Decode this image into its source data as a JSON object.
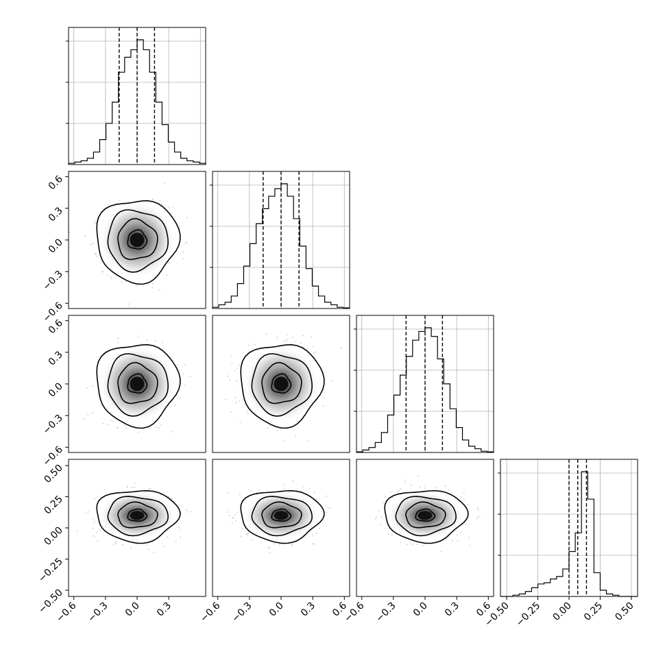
{
  "chart_data": [
    {
      "type": "histogram",
      "panel": "1,1",
      "param_index": 0,
      "bin_edges_range": [
        -0.65,
        0.65
      ],
      "counts_relative": [
        0.01,
        0.02,
        0.03,
        0.05,
        0.1,
        0.2,
        0.33,
        0.5,
        0.74,
        0.86,
        0.92,
        1.0,
        0.92,
        0.74,
        0.5,
        0.32,
        0.18,
        0.1,
        0.05,
        0.03,
        0.02,
        0.01
      ],
      "quantile_lines": [
        -0.17,
        0.0,
        0.165
      ],
      "xlim": [
        -0.65,
        0.65
      ],
      "grid": true
    },
    {
      "type": "histogram",
      "panel": "2,2",
      "param_index": 1,
      "bin_edges_range": [
        -0.65,
        0.65
      ],
      "counts_relative": [
        0.01,
        0.03,
        0.05,
        0.1,
        0.2,
        0.34,
        0.52,
        0.68,
        0.8,
        0.9,
        0.96,
        1.0,
        0.9,
        0.72,
        0.5,
        0.32,
        0.18,
        0.1,
        0.05,
        0.03,
        0.01,
        0.005
      ],
      "quantile_lines": [
        -0.17,
        0.0,
        0.17
      ],
      "xlim": [
        -0.65,
        0.65
      ],
      "grid": true
    },
    {
      "type": "histogram",
      "panel": "3,3",
      "param_index": 2,
      "bin_edges_range": [
        -0.65,
        0.65
      ],
      "counts_relative": [
        0.005,
        0.02,
        0.04,
        0.08,
        0.16,
        0.3,
        0.46,
        0.62,
        0.77,
        0.9,
        0.97,
        1.0,
        0.93,
        0.75,
        0.55,
        0.35,
        0.2,
        0.1,
        0.05,
        0.03,
        0.01,
        0.005
      ],
      "quantile_lines": [
        -0.18,
        0.0,
        0.165
      ],
      "xlim": [
        -0.65,
        0.65
      ],
      "grid": true
    },
    {
      "type": "histogram",
      "panel": "4,4",
      "param_index": 3,
      "bin_edges_range": [
        -0.55,
        0.55
      ],
      "counts_relative": [
        0.0,
        0.0,
        0.01,
        0.02,
        0.04,
        0.07,
        0.1,
        0.11,
        0.14,
        0.16,
        0.22,
        0.36,
        0.51,
        1.0,
        0.78,
        0.19,
        0.05,
        0.02,
        0.01,
        0.0,
        0.0,
        0.0
      ],
      "quantile_lines": [
        0.0,
        0.07,
        0.14
      ],
      "xlim": [
        -0.55,
        0.55
      ],
      "grid": true
    },
    {
      "type": "scatter-contour",
      "panel": "2,1",
      "x_param": 0,
      "y_param": 1,
      "center": [
        0.0,
        0.0
      ],
      "spread": [
        0.15,
        0.15
      ],
      "xlim": [
        -0.65,
        0.65
      ],
      "ylim": [
        -0.65,
        0.65
      ]
    },
    {
      "type": "scatter-contour",
      "panel": "3,1",
      "x_param": 0,
      "y_param": 2,
      "center": [
        0.0,
        0.0
      ],
      "spread": [
        0.15,
        0.15
      ],
      "xlim": [
        -0.65,
        0.65
      ],
      "ylim": [
        -0.65,
        0.65
      ]
    },
    {
      "type": "scatter-contour",
      "panel": "3,2",
      "x_param": 1,
      "y_param": 2,
      "center": [
        0.0,
        0.0
      ],
      "spread": [
        0.15,
        0.15
      ],
      "xlim": [
        -0.65,
        0.65
      ],
      "ylim": [
        -0.65,
        0.65
      ]
    },
    {
      "type": "scatter-contour",
      "panel": "4,1",
      "x_param": 0,
      "y_param": 3,
      "center": [
        0.0,
        0.1
      ],
      "spread": [
        0.15,
        0.08
      ],
      "xlim": [
        -0.65,
        0.65
      ],
      "ylim": [
        -0.55,
        0.55
      ]
    },
    {
      "type": "scatter-contour",
      "panel": "4,2",
      "x_param": 1,
      "y_param": 3,
      "center": [
        0.0,
        0.1
      ],
      "spread": [
        0.15,
        0.08
      ],
      "xlim": [
        -0.65,
        0.65
      ],
      "ylim": [
        -0.55,
        0.55
      ]
    },
    {
      "type": "scatter-contour",
      "panel": "4,3",
      "x_param": 2,
      "y_param": 3,
      "center": [
        0.0,
        0.1
      ],
      "spread": [
        0.15,
        0.08
      ],
      "xlim": [
        -0.65,
        0.65
      ],
      "ylim": [
        -0.55,
        0.55
      ]
    }
  ],
  "axes": {
    "x_ticks": {
      "col1": [
        "−0.6",
        "−0.3",
        "0.0",
        "0.3"
      ],
      "col2": [
        "−0.6",
        "−0.3",
        "0.0",
        "0.3",
        "0.6"
      ],
      "col3": [
        "−0.6",
        "−0.3",
        "0.0",
        "0.3",
        "0.6"
      ],
      "col4": [
        "−0.50",
        "−0.25",
        "0.00",
        "0.25",
        "0.50"
      ]
    },
    "y_ticks": {
      "row2": [
        "0.6",
        "0.3",
        "0.0",
        "−0.3",
        "−0.6"
      ],
      "row3": [
        "0.6",
        "0.3",
        "0.0",
        "−0.3",
        "−0.6"
      ],
      "row4": [
        "0.50",
        "0.25",
        "0.00",
        "−0.25",
        "−0.50"
      ]
    }
  },
  "colors": {
    "line": "#000000",
    "grid": "#b0b0b0",
    "density_fill": "#3b3b3b"
  }
}
